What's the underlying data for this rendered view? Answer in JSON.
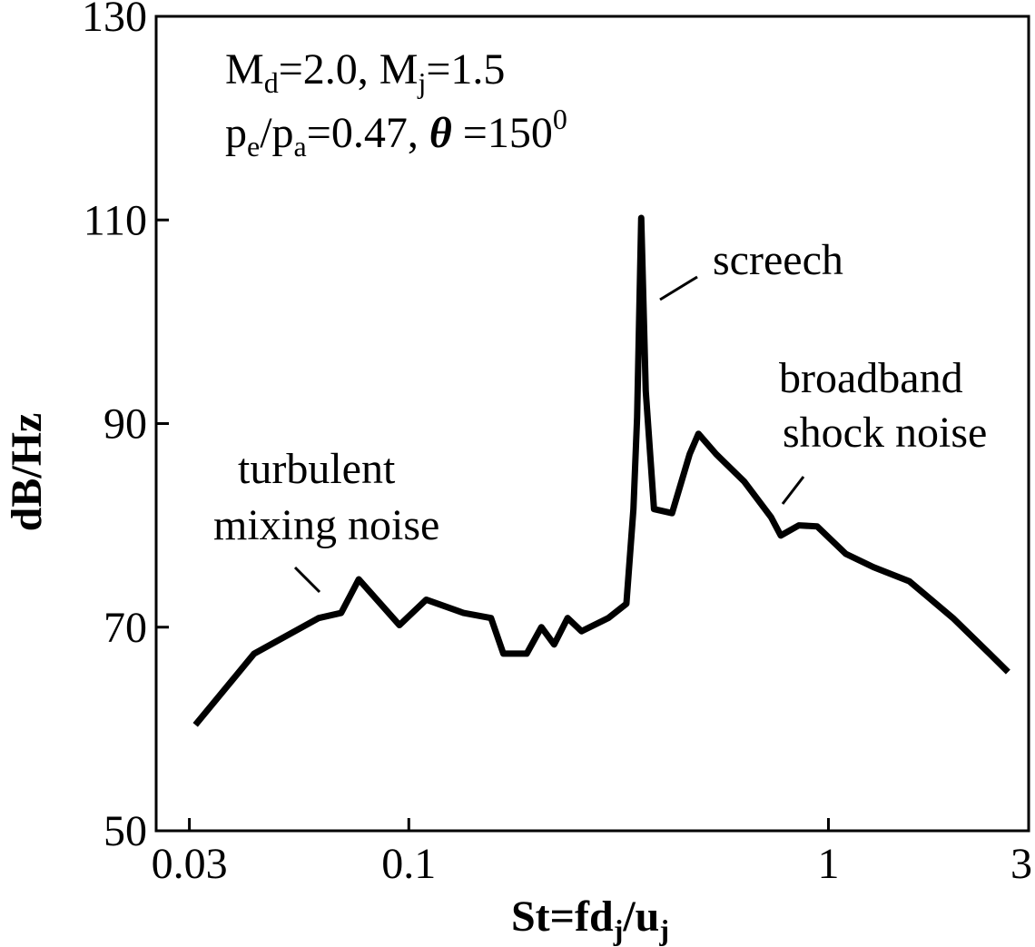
{
  "chart_data": {
    "type": "line",
    "xscale": "log",
    "ylabel": "dB/Hz",
    "xlabel": [
      "St=fd",
      "j",
      "/u",
      "j"
    ],
    "annotations": [
      [
        "M",
        "d",
        "=2.0,  M",
        "j",
        "=1.5"
      ],
      [
        "p",
        "e",
        "/p",
        "a",
        "=0.47, ",
        "θ",
        " =150",
        "0"
      ],
      [
        "screech"
      ],
      [
        "broadband"
      ],
      [
        "shock noise"
      ],
      [
        "turbulent"
      ],
      [
        "mixing noise"
      ]
    ],
    "x": [
      0.031,
      0.0428,
      0.061,
      0.069,
      0.076,
      0.095,
      0.11,
      0.135,
      0.157,
      0.168,
      0.191,
      0.207,
      0.222,
      0.239,
      0.258,
      0.299,
      0.33,
      0.343,
      0.35,
      0.358,
      0.367,
      0.384,
      0.424,
      0.467,
      0.49,
      0.54,
      0.63,
      0.73,
      0.77,
      0.85,
      0.94,
      1.1,
      1.28,
      1.56,
      1.98,
      2.42,
      2.68
    ],
    "values": [
      60.4,
      67.4,
      70.9,
      71.4,
      74.7,
      70.2,
      72.7,
      71.4,
      70.9,
      67.4,
      67.4,
      70,
      68.3,
      70.9,
      69.6,
      70.9,
      72.3,
      81.6,
      90.6,
      110.2,
      93.2,
      81.6,
      81.2,
      87,
      89,
      87,
      84.3,
      80.8,
      79,
      80,
      79.9,
      77.2,
      75.9,
      74.5,
      70.9,
      67.4,
      65.6
    ],
    "color": "#000000",
    "xlim": [
      0.025,
      3
    ],
    "xticks": [
      0.03,
      0.1,
      1,
      3
    ],
    "ylim": [
      50,
      130
    ],
    "yticks": [
      50,
      70,
      90,
      110,
      130
    ]
  }
}
